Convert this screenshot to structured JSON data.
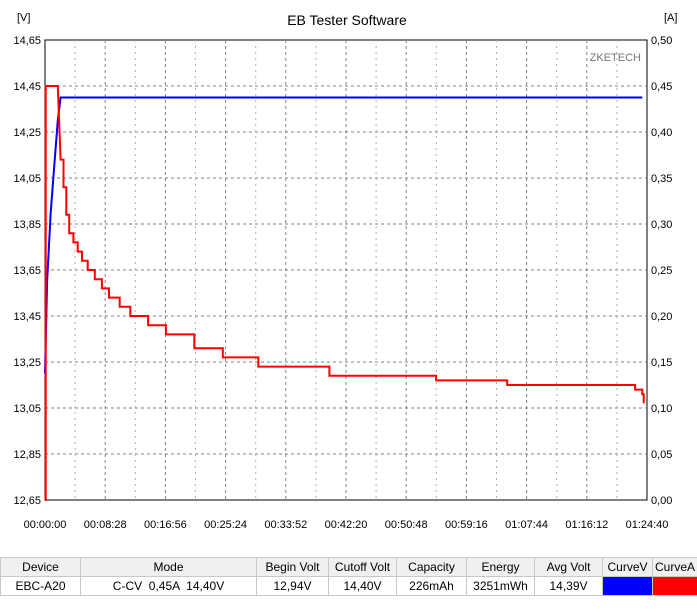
{
  "chart_data": {
    "type": "line",
    "title": "EB Tester Software",
    "watermark": "ZKETECH",
    "y_left_unit": "[V]",
    "y_right_unit": "[A]",
    "y_left_range": [
      12.65,
      14.65
    ],
    "y_right_range": [
      0.0,
      0.5
    ],
    "y_left_ticks": [
      "14,65",
      "14,45",
      "14,25",
      "14,05",
      "13,85",
      "13,65",
      "13,45",
      "13,25",
      "13,05",
      "12,85",
      "12,65"
    ],
    "y_right_ticks": [
      "0,50",
      "0,45",
      "0,40",
      "0,35",
      "0,30",
      "0,25",
      "0,20",
      "0,15",
      "0,10",
      "0,05",
      "0,00"
    ],
    "x_range": [
      "00:00:00",
      "01:24:40"
    ],
    "x_ticks": [
      "00:00:00",
      "00:08:28",
      "00:16:56",
      "00:25:24",
      "00:33:52",
      "00:42:20",
      "00:50:48",
      "00:59:16",
      "01:07:44",
      "01:16:12",
      "01:24:40"
    ],
    "grid": true,
    "series": [
      {
        "axis": "left",
        "color": "#0000ff",
        "x_minutes": [
          0.0,
          0.3,
          0.8,
          1.3,
          1.8,
          2.2,
          84.0
        ],
        "values": [
          13.2,
          13.6,
          13.9,
          14.1,
          14.3,
          14.4,
          14.4
        ]
      },
      {
        "axis": "right",
        "color": "#ff0000",
        "x_minutes": [
          0.0,
          0.1,
          0.1,
          1.8,
          2.2,
          2.6,
          3.0,
          3.4,
          4.0,
          4.6,
          5.2,
          6.0,
          7.0,
          8.0,
          9.0,
          10.5,
          12.0,
          14.5,
          17.0,
          21.0,
          25.0,
          30.0,
          40.0,
          55.0,
          65.0,
          75.0,
          83.0,
          84.0,
          84.2
        ],
        "values": [
          0.0,
          0.0,
          0.45,
          0.45,
          0.37,
          0.34,
          0.31,
          0.29,
          0.28,
          0.27,
          0.26,
          0.25,
          0.24,
          0.23,
          0.22,
          0.21,
          0.2,
          0.19,
          0.18,
          0.165,
          0.155,
          0.145,
          0.135,
          0.13,
          0.125,
          0.125,
          0.12,
          0.115,
          0.105
        ]
      }
    ]
  },
  "table": {
    "headers": [
      "Device",
      "Mode",
      "Begin Volt",
      "Cutoff Volt",
      "Capacity",
      "Energy",
      "Avg Volt",
      "CurveV",
      "CurveA"
    ],
    "row": [
      "EBC-A20",
      "C-CV  0,45A  14,40V",
      "12,94V",
      "14,40V",
      "226mAh",
      "3251mWh",
      "14,39V"
    ],
    "curve_colors": [
      "#0000ff",
      "#ff0000"
    ]
  }
}
